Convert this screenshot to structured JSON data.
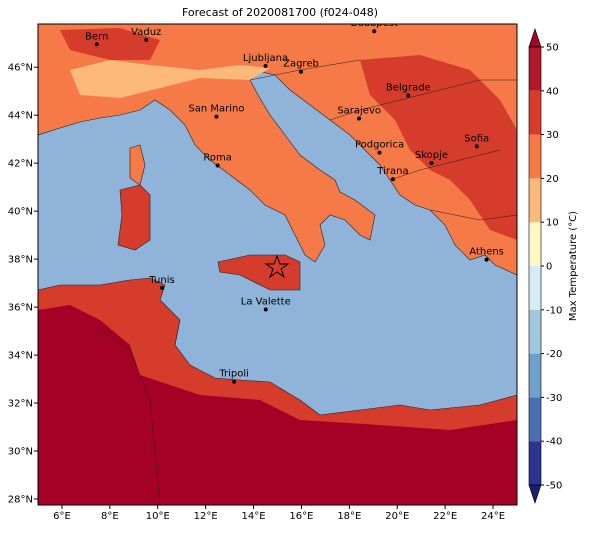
{
  "title": "Forecast of 2020081700 (f024-048)",
  "map": {
    "xlim": [
      5,
      25
    ],
    "ylim": [
      27.75,
      47.8
    ],
    "xticks": [
      {
        "value": 6,
        "label": "6°E"
      },
      {
        "value": 8,
        "label": "8°E"
      },
      {
        "value": 10,
        "label": "10°E"
      },
      {
        "value": 12,
        "label": "12°E"
      },
      {
        "value": 14,
        "label": "14°E"
      },
      {
        "value": 16,
        "label": "16°E"
      },
      {
        "value": 18,
        "label": "18°E"
      },
      {
        "value": 20,
        "label": "20°E"
      },
      {
        "value": 22,
        "label": "22°E"
      },
      {
        "value": 24,
        "label": "24°E"
      }
    ],
    "yticks": [
      {
        "value": 28,
        "label": "28°N"
      },
      {
        "value": 30,
        "label": "30°N"
      },
      {
        "value": 32,
        "label": "32°N"
      },
      {
        "value": 34,
        "label": "34°N"
      },
      {
        "value": 36,
        "label": "36°N"
      },
      {
        "value": 38,
        "label": "38°N"
      },
      {
        "value": 40,
        "label": "40°N"
      },
      {
        "value": 42,
        "label": "42°N"
      },
      {
        "value": 44,
        "label": "44°N"
      },
      {
        "value": 46,
        "label": "46°N"
      }
    ],
    "grid": true
  },
  "cities": [
    {
      "name": "Bern",
      "lon": 7.45,
      "lat": 46.95
    },
    {
      "name": "Vaduz",
      "lon": 9.52,
      "lat": 47.14
    },
    {
      "name": "Budapest",
      "lon": 19.04,
      "lat": 47.5
    },
    {
      "name": "Ljubljana",
      "lon": 14.5,
      "lat": 46.05
    },
    {
      "name": "Zagreb",
      "lon": 15.98,
      "lat": 45.81
    },
    {
      "name": "Belgrade",
      "lon": 20.46,
      "lat": 44.82
    },
    {
      "name": "San Marino",
      "lon": 12.45,
      "lat": 43.94
    },
    {
      "name": "Sarajevo",
      "lon": 18.41,
      "lat": 43.86
    },
    {
      "name": "Sofia",
      "lon": 23.32,
      "lat": 42.7
    },
    {
      "name": "Podgorica",
      "lon": 19.26,
      "lat": 42.44
    },
    {
      "name": "Skopje",
      "lon": 21.43,
      "lat": 42.0
    },
    {
      "name": "Roma",
      "lon": 12.5,
      "lat": 41.9
    },
    {
      "name": "Tirana",
      "lon": 19.82,
      "lat": 41.33
    },
    {
      "name": "Athens",
      "lon": 23.73,
      "lat": 37.98
    },
    {
      "name": "Tunis",
      "lon": 10.18,
      "lat": 36.8
    },
    {
      "name": "La Valette",
      "lon": 14.51,
      "lat": 35.9
    },
    {
      "name": "Tripoli",
      "lon": 13.19,
      "lat": 32.89
    }
  ],
  "colorbar": {
    "label": "Max Temperature (°C)",
    "lim": [
      -50,
      50
    ],
    "ticks": [
      -50,
      -40,
      -30,
      -20,
      -10,
      0,
      10,
      20,
      30,
      40,
      50
    ],
    "colors": [
      "#2b3492",
      "#4a6fb0",
      "#6f9fcb",
      "#a2c8e0",
      "#d6ecf3",
      "#fff7c4",
      "#fdb97a",
      "#f57a48",
      "#d63c2c",
      "#b2182b"
    ],
    "under": "#1a1f6e",
    "over": "#a50026"
  }
}
